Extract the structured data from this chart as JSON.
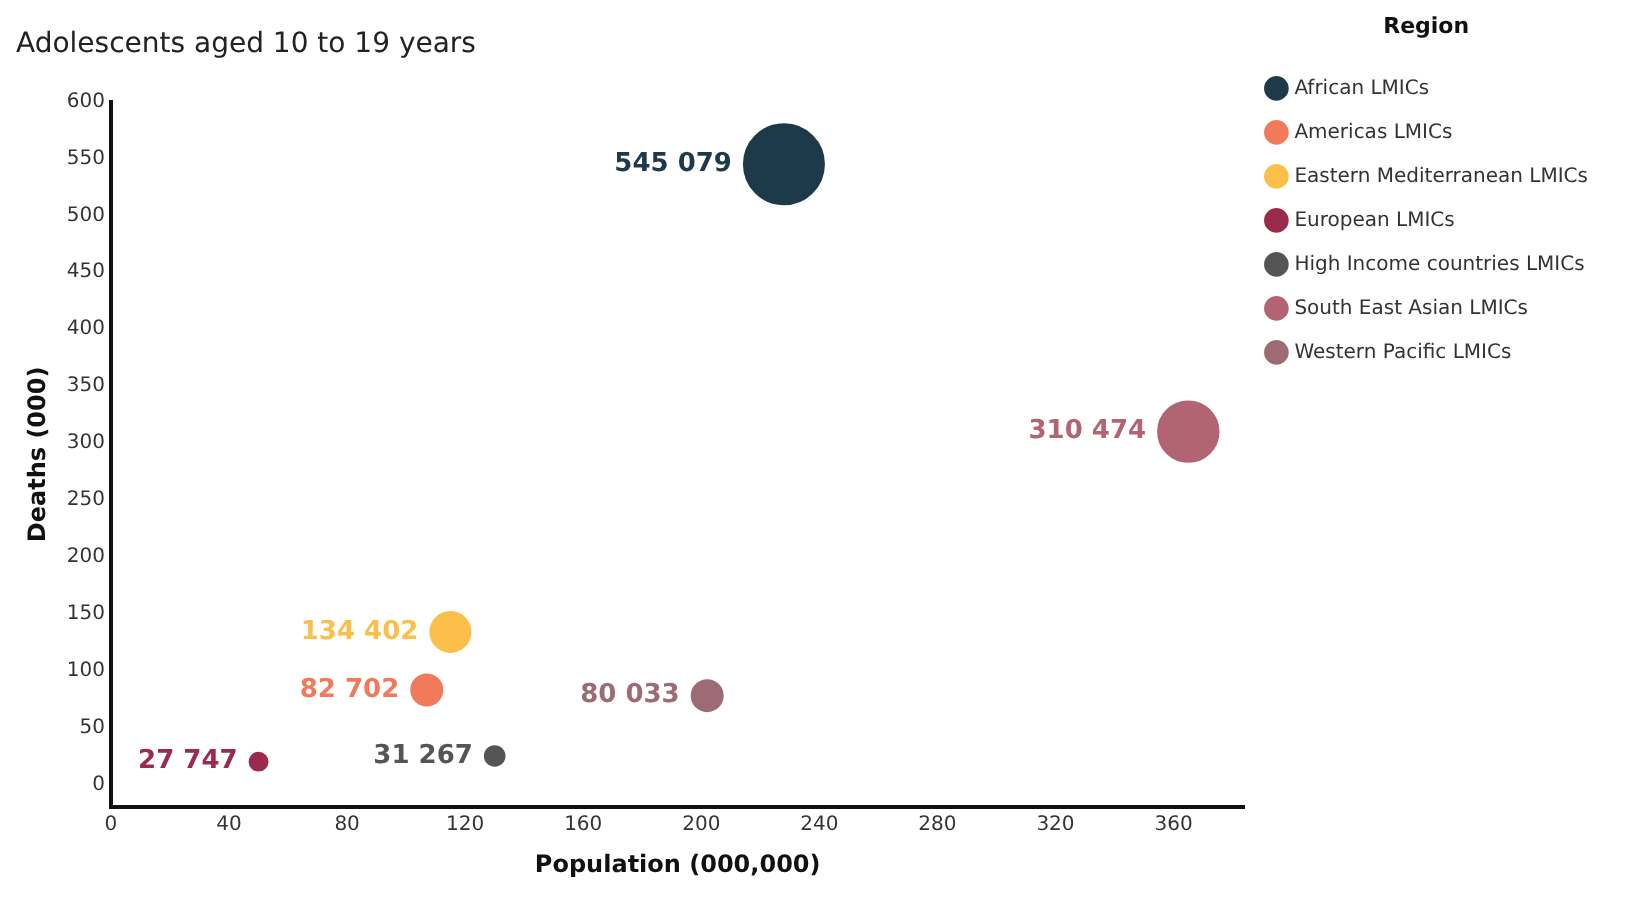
{
  "chart_data": {
    "type": "bubble",
    "title": "Adolescents aged 10 to 19 years",
    "xlabel": "Population (000,000)",
    "ylabel": "Deaths (000)",
    "legend_title": "Region",
    "legend": "top right",
    "grid": false,
    "marker": "circle",
    "xlim": [
      0,
      384
    ],
    "xticks": [
      0,
      40,
      80,
      120,
      160,
      200,
      240,
      280,
      320,
      360
    ],
    "ylim": [
      -20,
      600
    ],
    "yticks": [
      0,
      50,
      100,
      150,
      200,
      250,
      300,
      350,
      400,
      450,
      500,
      550,
      600
    ],
    "annotations": [
      {
        "text": "545 079",
        "x": 228,
        "y": 545
      },
      {
        "text": "82 702",
        "x": 107,
        "y": 83
      },
      {
        "text": "134 402",
        "x": 115,
        "y": 134
      },
      {
        "text": "27 747",
        "x": 50,
        "y": 20
      },
      {
        "text": "31 267",
        "x": 130,
        "y": 25
      },
      {
        "text": "310 474",
        "x": 365,
        "y": 310
      },
      {
        "text": "80 033",
        "x": 202,
        "y": 78
      }
    ],
    "series": [
      {
        "name": "African LMICs",
        "color": "#1d3a4a",
        "x": [
          228
        ],
        "values": [
          545
        ],
        "sizes": [
          1
        ]
      },
      {
        "name": "Americas LMICs",
        "color": "#f07a5a",
        "x": [
          107
        ],
        "values": [
          83
        ],
        "sizes": [
          0.15
        ]
      },
      {
        "name": "Eastern Mediterranean LMICs",
        "color": "#fcbf49",
        "x": [
          115
        ],
        "values": [
          134
        ],
        "sizes": [
          0.25
        ]
      },
      {
        "name": "European LMICs",
        "color": "#9b2b4c",
        "x": [
          50
        ],
        "values": [
          20
        ],
        "sizes": [
          0.05
        ]
      },
      {
        "name": "High Income countries LMICs",
        "color": "#555555",
        "x": [
          130
        ],
        "values": [
          25
        ],
        "sizes": [
          0.06
        ]
      },
      {
        "name": "South East Asian LMICs",
        "color": "#b36473",
        "x": [
          365
        ],
        "values": [
          310
        ],
        "sizes": [
          0.57
        ]
      },
      {
        "name": "Western Pacific LMICs",
        "color": "#9c6b73",
        "x": [
          202
        ],
        "values": [
          78
        ],
        "sizes": [
          0.15
        ]
      }
    ]
  }
}
